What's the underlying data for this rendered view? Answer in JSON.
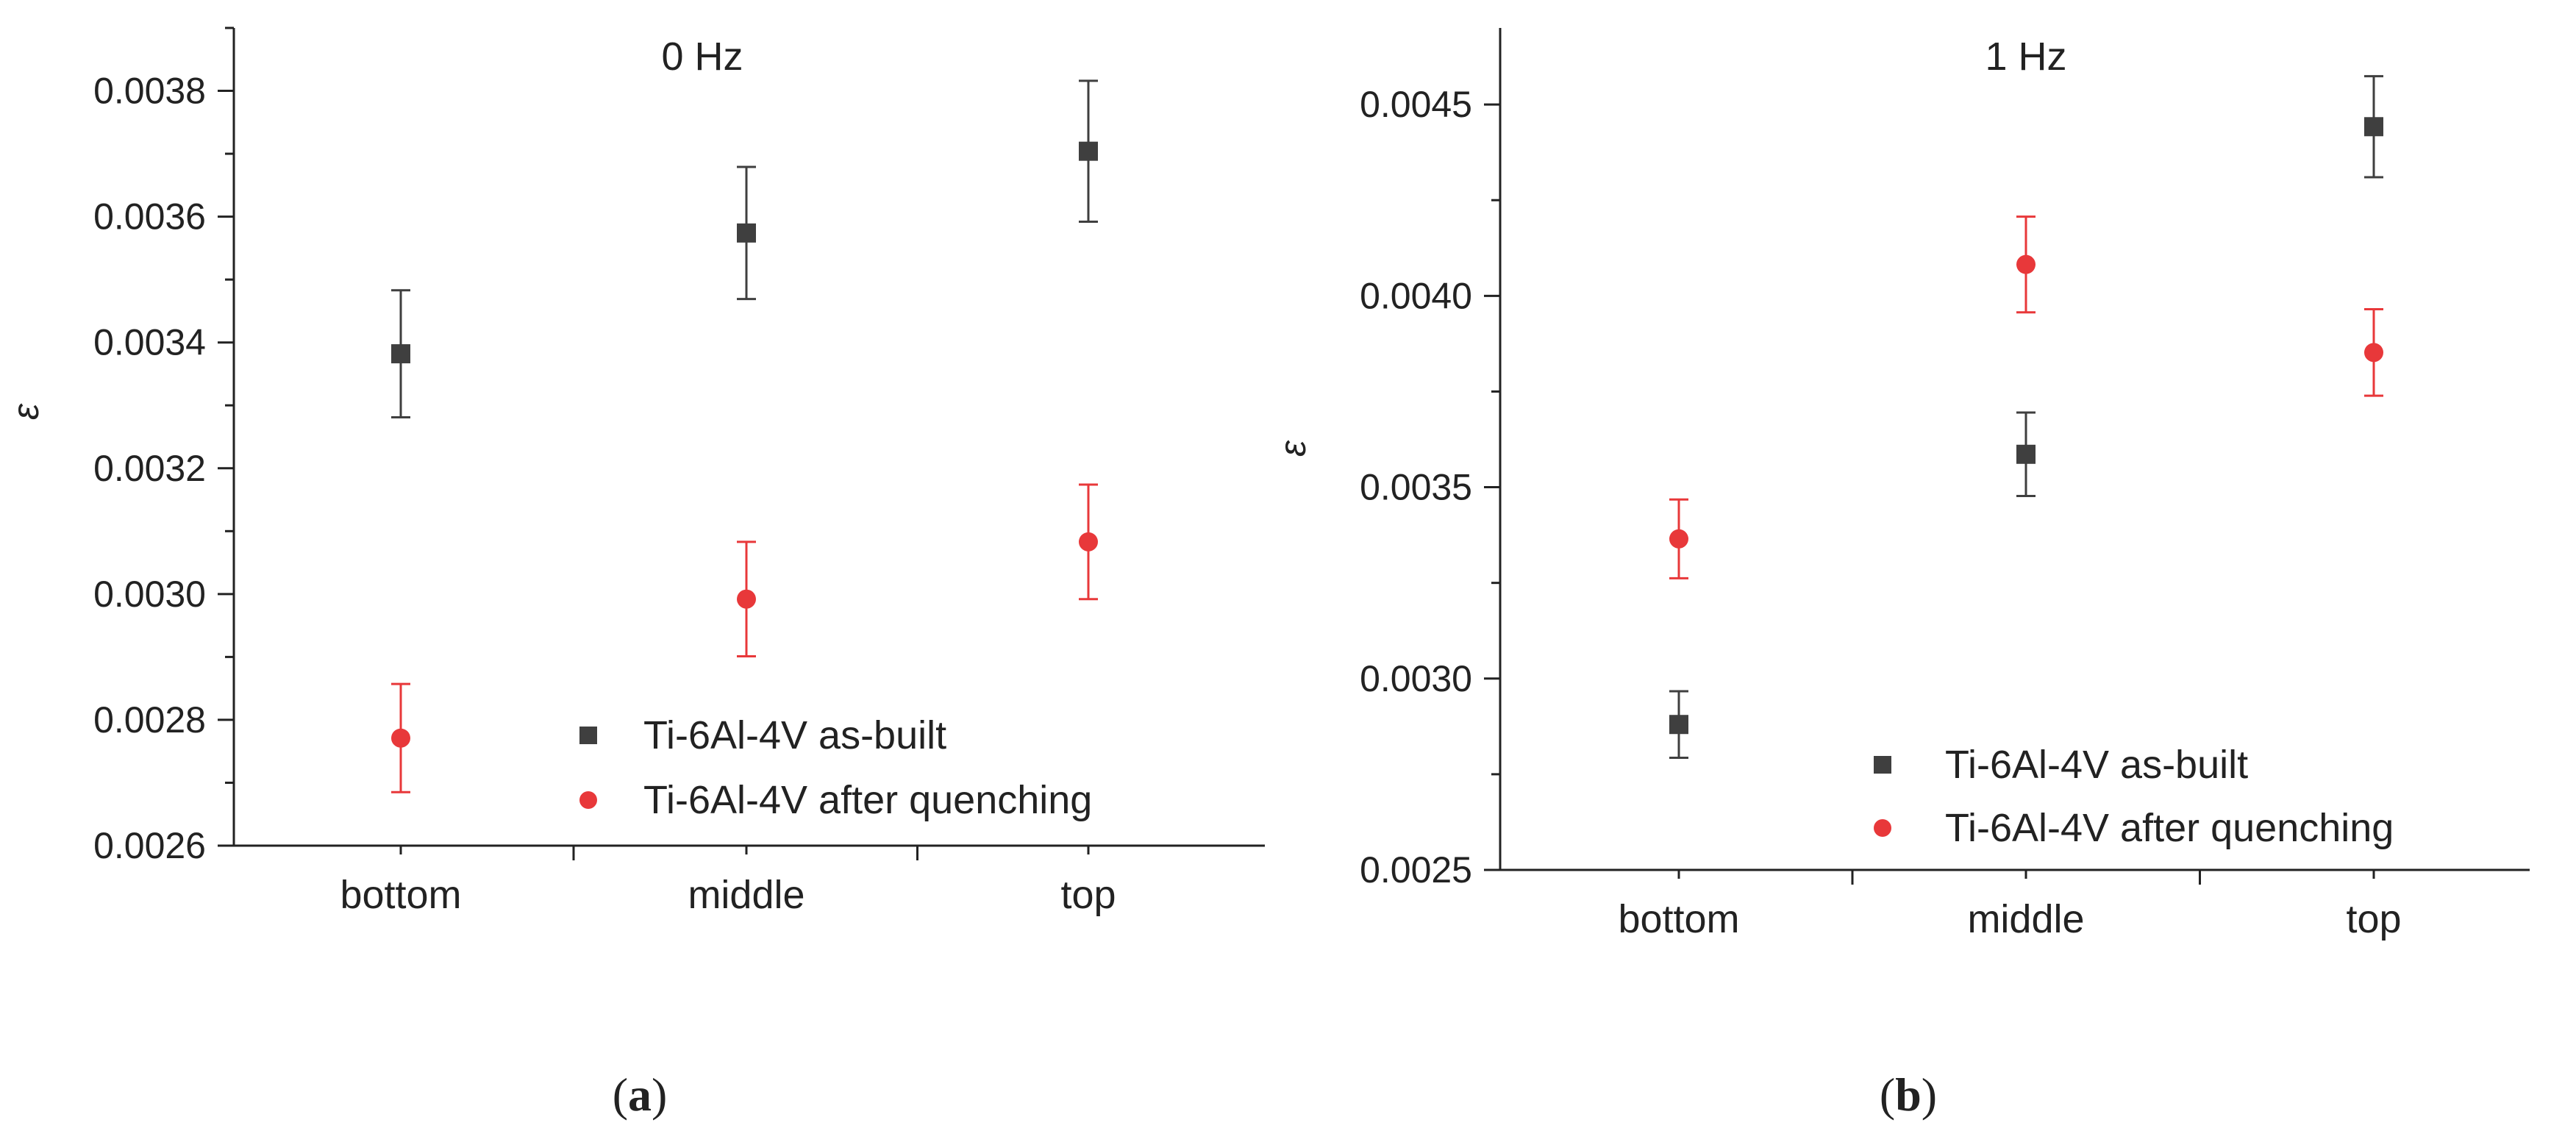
{
  "chart_data": [
    {
      "type": "scatter",
      "title": "0 Hz",
      "xlabel": "",
      "ylabel": "ε",
      "categories": [
        "bottom",
        "middle",
        "top"
      ],
      "ylim": [
        0.0026,
        0.0039
      ],
      "yticks": [
        0.0026,
        0.0028,
        0.003,
        0.0032,
        0.0034,
        0.0036,
        0.0038
      ],
      "ytick_labels": [
        "0.0026",
        "0.0028",
        "0.0030",
        "0.0032",
        "0.0034",
        "0.0036",
        "0.0038"
      ],
      "grid": false,
      "legend_position": "bottom-right",
      "series": [
        {
          "name": "Ti-6Al-4V as-built",
          "color": "#3f3f3f",
          "marker": "square",
          "values": [
            0.003382,
            0.003574,
            0.003704
          ],
          "error": [
            0.000101,
            0.000105,
            0.000112
          ]
        },
        {
          "name": "Ti-6Al-4V after quenching",
          "color": "#e8383a",
          "marker": "circle",
          "values": [
            0.002771,
            0.002992,
            0.003083
          ],
          "error": [
            8.6e-05,
            9.1e-05,
            9.1e-05
          ]
        }
      ],
      "caption": "a"
    },
    {
      "type": "scatter",
      "title": "1 Hz",
      "xlabel": "",
      "ylabel": "ε",
      "categories": [
        "bottom",
        "middle",
        "top"
      ],
      "ylim": [
        0.0025,
        0.0047
      ],
      "yticks": [
        0.0025,
        0.003,
        0.0035,
        0.004,
        0.0045
      ],
      "ytick_labels": [
        "0.0025",
        "0.0030",
        "0.0035",
        "0.0040",
        "0.0045"
      ],
      "grid": false,
      "legend_position": "bottom-right",
      "series": [
        {
          "name": "Ti-6Al-4V as-built",
          "color": "#3f3f3f",
          "marker": "square",
          "values": [
            0.00288,
            0.003586,
            0.004442
          ],
          "error": [
            8.7e-05,
            0.000109,
            0.000132
          ]
        },
        {
          "name": "Ti-6Al-4V after quenching",
          "color": "#e8383a",
          "marker": "circle",
          "values": [
            0.003365,
            0.004082,
            0.003852
          ],
          "error": [
            0.000103,
            0.000125,
            0.000113
          ]
        }
      ],
      "caption": "b"
    }
  ]
}
